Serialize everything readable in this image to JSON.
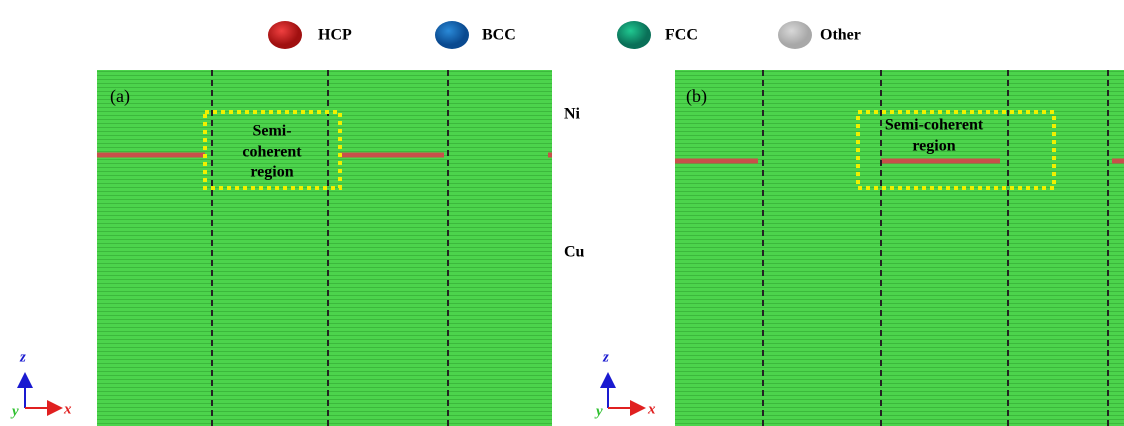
{
  "legend": [
    {
      "label": "HCP"
    },
    {
      "label": "BCC"
    },
    {
      "label": "FCC"
    },
    {
      "label": "Other"
    }
  ],
  "panels": [
    {
      "label": "(a)",
      "annotation": [
        "Semi-",
        "coherent",
        "region"
      ],
      "layers": [
        "Ni",
        "Cu"
      ],
      "axes": {
        "vertical": "z",
        "horizontal": "x",
        "normal": "y"
      }
    },
    {
      "label": "(b)",
      "annotation": [
        "Semi-coherent",
        "region"
      ],
      "axes": {
        "vertical": "z",
        "horizontal": "x",
        "normal": "y"
      }
    }
  ]
}
